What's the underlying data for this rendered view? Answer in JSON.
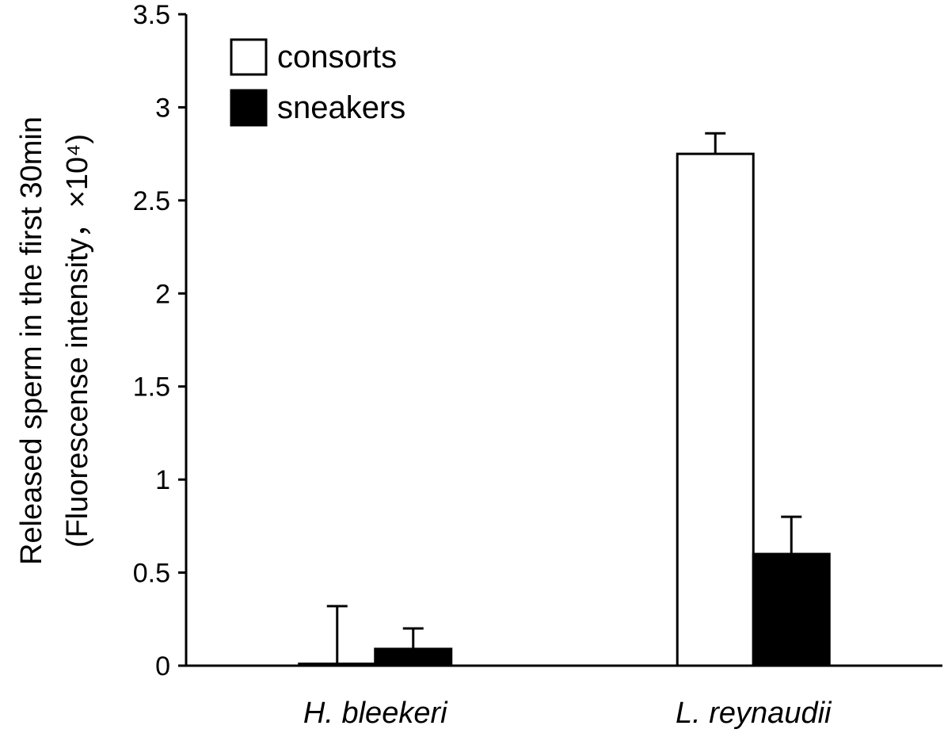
{
  "chart_data": {
    "type": "bar",
    "categories": [
      "H. bleekeri",
      "L. reynaudii"
    ],
    "series": [
      {
        "name": "consorts",
        "color": "#ffffff",
        "values": [
          0.01,
          2.75
        ],
        "error": [
          0.31,
          0.11
        ]
      },
      {
        "name": "sneakers",
        "color": "#000000",
        "values": [
          0.09,
          0.6
        ],
        "error": [
          0.11,
          0.2
        ]
      }
    ],
    "ylabel_line1": "Released sperm in the first 30min",
    "ylabel_line2": "(Fluorescense intensity，×10⁴)",
    "ylim": [
      0,
      3.5
    ],
    "yticks": [
      0,
      0.5,
      1,
      1.5,
      2,
      2.5,
      3,
      3.5
    ],
    "ytick_labels": [
      "0",
      "0.5",
      "1",
      "1.5",
      "2",
      "2.5",
      "3",
      "3.5"
    ],
    "grid": false,
    "legend_position": "top-left"
  }
}
